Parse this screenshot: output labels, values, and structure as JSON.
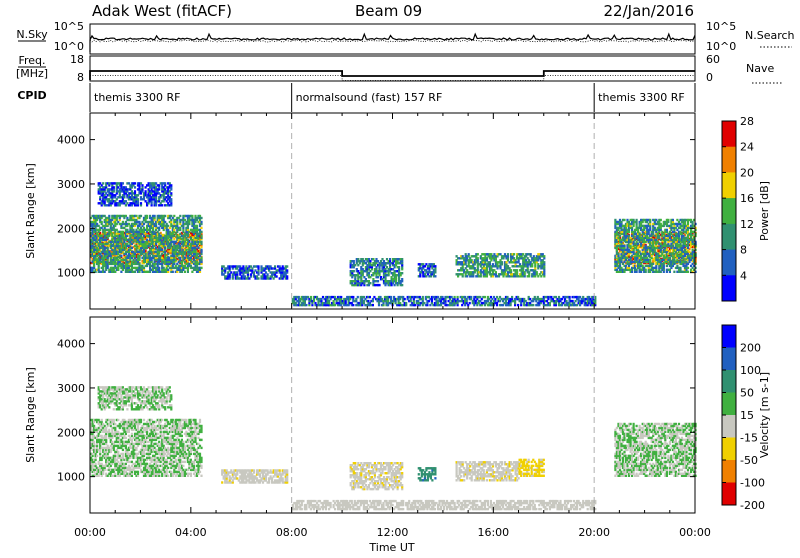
{
  "header": {
    "station": "Adak West (fitACF)",
    "beam": "Beam 09",
    "date": "22/Jan/2016"
  },
  "sky_panel": {
    "left_label": "N.Sky",
    "right_label": "N.Search",
    "left_ticks": [
      "10^5",
      "10^0"
    ],
    "right_ticks": [
      "10^5",
      "10^0"
    ]
  },
  "freq_panel": {
    "left_label_1": "Freq.",
    "left_label_2": "[MHz]",
    "right_label": "Nave",
    "left_ticks": [
      "18",
      "8"
    ],
    "right_ticks": [
      "60",
      "0"
    ],
    "freq_steps": [
      {
        "start": 0.0,
        "end": 10.0,
        "value": 12.0
      },
      {
        "start": 10.0,
        "end": 18.0,
        "value": 10.0
      },
      {
        "start": 18.0,
        "end": 24.0,
        "value": 12.0
      }
    ]
  },
  "cpid": {
    "label": "CPID",
    "segments": [
      {
        "start": 0.0,
        "end": 8.0,
        "text": "themis 3300 RF"
      },
      {
        "start": 8.0,
        "end": 20.0,
        "text": "normalsound (fast) 157 RF"
      },
      {
        "start": 20.0,
        "end": 24.0,
        "text": "themis 3300 RF"
      }
    ]
  },
  "chart_data": [
    {
      "type": "heatmap",
      "name": "power",
      "ylabel": "Slant Range [km]",
      "xlabel": "Time UT",
      "xlim": [
        0,
        24
      ],
      "ylim": [
        180,
        4600
      ],
      "yticks": [
        1000,
        2000,
        3000,
        4000
      ],
      "xticks": [
        "00:00",
        "04:00",
        "08:00",
        "12:00",
        "16:00",
        "20:00",
        "00:00"
      ],
      "colorbar": {
        "label": "Power [dB]",
        "ticks": [
          "4",
          "8",
          "12",
          "16",
          "20",
          "24",
          "28"
        ],
        "colors": [
          "#0000ff",
          "#2060c0",
          "#309070",
          "#40b040",
          "#f0d000",
          "#f08000",
          "#e00000"
        ],
        "range": [
          0,
          32
        ]
      },
      "regions": [
        {
          "t0": 0.0,
          "t1": 4.4,
          "r0": 1200,
          "r1": 1900,
          "level": 24
        },
        {
          "t0": 0.0,
          "t1": 4.4,
          "r0": 1000,
          "r1": 2300,
          "level": 12
        },
        {
          "t0": 0.3,
          "t1": 3.2,
          "r0": 2500,
          "r1": 3000,
          "level": 6
        },
        {
          "t0": 5.2,
          "t1": 7.8,
          "r0": 850,
          "r1": 1150,
          "level": 6
        },
        {
          "t0": 10.3,
          "t1": 12.4,
          "r0": 700,
          "r1": 1300,
          "level": 10
        },
        {
          "t0": 13.0,
          "t1": 13.7,
          "r0": 900,
          "r1": 1200,
          "level": 6
        },
        {
          "t0": 14.5,
          "t1": 18.0,
          "r0": 900,
          "r1": 1400,
          "level": 12
        },
        {
          "t0": 20.8,
          "t1": 24.0,
          "r0": 1200,
          "r1": 1900,
          "level": 24
        },
        {
          "t0": 20.8,
          "t1": 24.0,
          "r0": 1000,
          "r1": 2200,
          "level": 12
        },
        {
          "t0": 8.0,
          "t1": 20.0,
          "r0": 250,
          "r1": 450,
          "level": 8
        }
      ]
    },
    {
      "type": "heatmap",
      "name": "velocity",
      "ylabel": "Slant Range [km]",
      "xlabel": "Time UT",
      "xlim": [
        0,
        24
      ],
      "ylim": [
        180,
        4600
      ],
      "yticks": [
        1000,
        2000,
        3000,
        4000
      ],
      "xticks": [
        "00:00",
        "04:00",
        "08:00",
        "12:00",
        "16:00",
        "20:00",
        "00:00"
      ],
      "colorbar": {
        "label": "Velocity [m s-1]",
        "ticks": [
          "200",
          "100",
          "50",
          "15",
          "-15",
          "-50",
          "-100",
          "-200"
        ],
        "colors": [
          "#0000ff",
          "#2060c0",
          "#309070",
          "#40b040",
          "#c8c8c0",
          "#f0d000",
          "#f08000",
          "#e00000"
        ],
        "range": [
          -250,
          250
        ]
      },
      "regions": [
        {
          "t0": 0.0,
          "t1": 4.4,
          "r0": 1000,
          "r1": 2300,
          "level": 0
        },
        {
          "t0": 0.3,
          "t1": 3.2,
          "r0": 2500,
          "r1": 3000,
          "level": 0
        },
        {
          "t0": 5.2,
          "t1": 7.8,
          "r0": 850,
          "r1": 1150,
          "level": -40
        },
        {
          "t0": 10.3,
          "t1": 12.4,
          "r0": 700,
          "r1": 1300,
          "level": -40
        },
        {
          "t0": 13.0,
          "t1": 13.7,
          "r0": 900,
          "r1": 1200,
          "level": 100
        },
        {
          "t0": 14.5,
          "t1": 17.0,
          "r0": 900,
          "r1": 1350,
          "level": -40
        },
        {
          "t0": 17.0,
          "t1": 18.0,
          "r0": 1000,
          "r1": 1400,
          "level": -80
        },
        {
          "t0": 20.8,
          "t1": 24.0,
          "r0": 1000,
          "r1": 2200,
          "level": 0
        },
        {
          "t0": 8.0,
          "t1": 20.0,
          "r0": 250,
          "r1": 450,
          "level": -30
        }
      ]
    }
  ]
}
